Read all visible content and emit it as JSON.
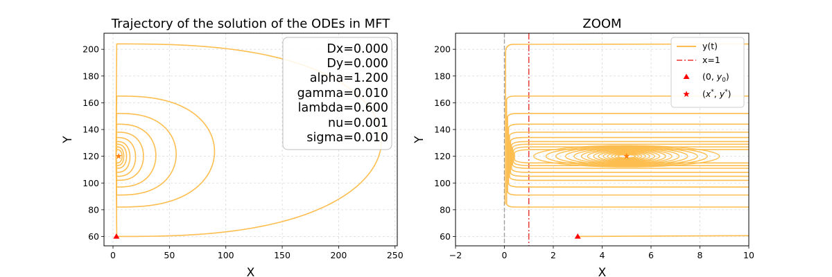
{
  "colors": {
    "trajectory": "#FDBE4F",
    "marker_start": "#ff0000",
    "marker_equilibrium": "#ff7f0e",
    "vline": "#e8322e",
    "zero_line": "#9e9e9e",
    "grid": "#d9d9d9"
  },
  "chart_data": [
    {
      "type": "line",
      "title": "Trajectory of the solution of the ODEs in MFT",
      "xlabel": "X",
      "ylabel": "Y",
      "xlim": [
        -8,
        252
      ],
      "ylim": [
        53,
        212
      ],
      "xticks": [
        0,
        50,
        100,
        150,
        200,
        250
      ],
      "yticks": [
        60,
        80,
        100,
        120,
        140,
        160,
        180,
        200
      ],
      "grid": true,
      "grid_style": "dashed",
      "params_box_placement": "top-right",
      "params": [
        "Dx=0.000",
        "Dy=0.000",
        "alpha=1.200",
        "gamma=0.010",
        "lambda=0.600",
        "nu=0.001",
        "sigma=0.010"
      ],
      "series": [
        {
          "label": "y(t)",
          "equilibrium": [
            5,
            120
          ],
          "start": [
            3,
            60
          ],
          "orbits": [
            {
              "xmax": 238,
              "ylo": 60,
              "yhi": 204
            },
            {
              "xmax": 90,
              "ylo": 82,
              "yhi": 165
            },
            {
              "xmax": 56,
              "ylo": 91,
              "yhi": 152
            },
            {
              "xmax": 38,
              "ylo": 97,
              "yhi": 144
            },
            {
              "xmax": 27,
              "ylo": 102,
              "yhi": 138
            },
            {
              "xmax": 20,
              "ylo": 105,
              "yhi": 134
            },
            {
              "xmax": 15,
              "ylo": 108,
              "yhi": 131
            },
            {
              "xmax": 12,
              "ylo": 111,
              "yhi": 129
            },
            {
              "xmax": 9.5,
              "ylo": 113,
              "yhi": 127
            },
            {
              "xmax": 8,
              "ylo": 115,
              "yhi": 125
            }
          ]
        }
      ],
      "markers": [
        {
          "type": "triangle",
          "x": 3,
          "y": 60
        },
        {
          "type": "star",
          "x": 5,
          "y": 120
        }
      ]
    },
    {
      "type": "line",
      "title": "ZOOM",
      "xlabel": "X",
      "ylabel": "Y",
      "xlim": [
        -2,
        10
      ],
      "ylim": [
        53,
        212
      ],
      "xticks": [
        -2,
        0,
        2,
        4,
        6,
        8,
        10
      ],
      "yticks": [
        60,
        80,
        100,
        120,
        140,
        160,
        180,
        200
      ],
      "grid": true,
      "grid_style": "dashed",
      "legend_placement": "top-right",
      "vlines": [
        {
          "x": 0,
          "style": "dashed",
          "label": ""
        },
        {
          "x": 1,
          "style": "dashdot",
          "label": "x=1"
        }
      ],
      "legend": [
        {
          "kind": "line",
          "label": "y(t)"
        },
        {
          "kind": "dashdot",
          "label": "x=1"
        },
        {
          "kind": "triangle",
          "label": "(0, y0)"
        },
        {
          "kind": "star",
          "label": "(x*, y*)"
        }
      ],
      "markers": [
        {
          "type": "triangle",
          "x": 3,
          "y": 60
        },
        {
          "type": "star",
          "x": 5,
          "y": 120
        }
      ]
    }
  ]
}
